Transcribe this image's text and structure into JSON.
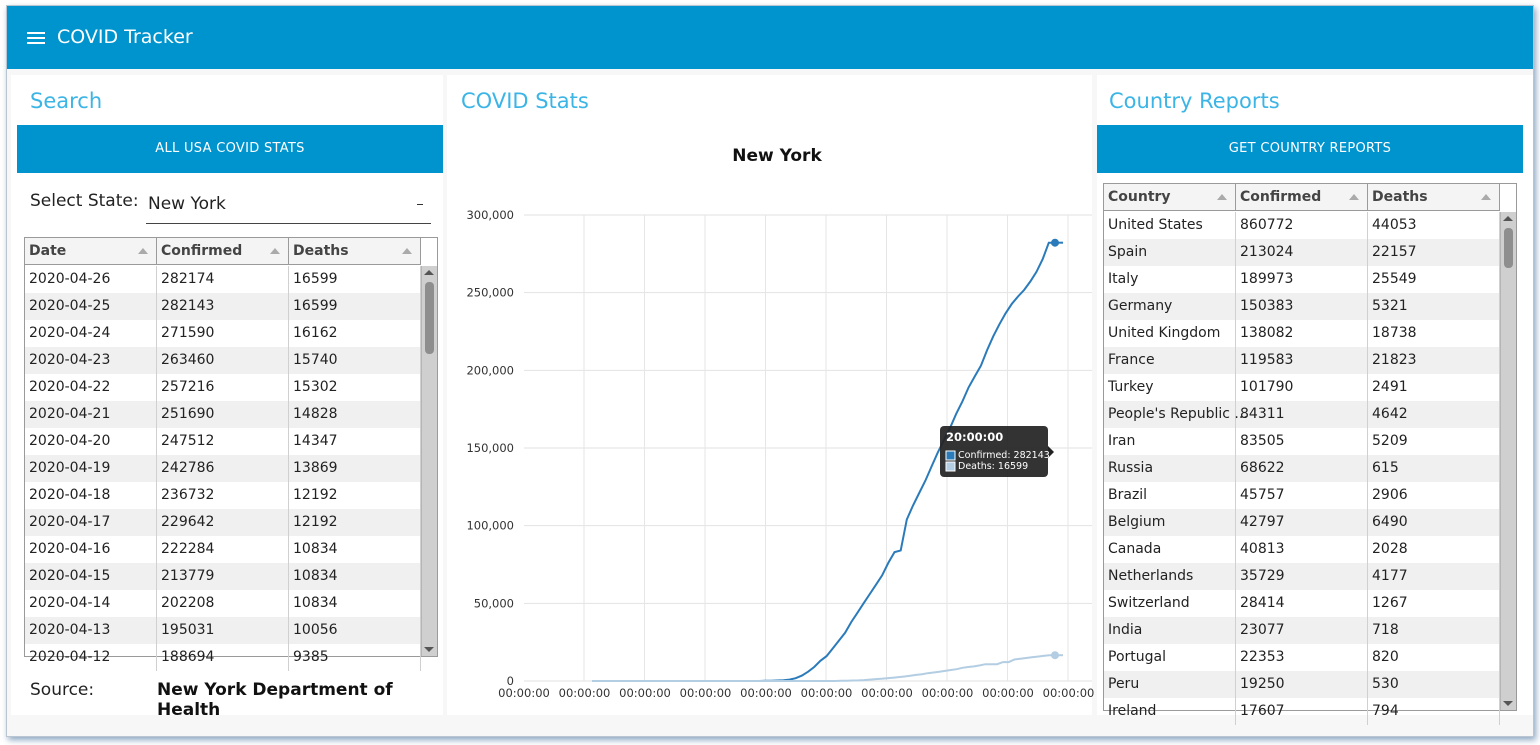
{
  "app": {
    "title": "COVID Tracker"
  },
  "search_panel": {
    "title": "Search",
    "all_usa_button": "ALL USA COVID STATS",
    "select_state_label": "Select State:",
    "selected_state": "New York",
    "table": {
      "columns": [
        "Date",
        "Confirmed",
        "Deaths"
      ],
      "rows": [
        [
          "2020-04-26",
          "282174",
          "16599"
        ],
        [
          "2020-04-25",
          "282143",
          "16599"
        ],
        [
          "2020-04-24",
          "271590",
          "16162"
        ],
        [
          "2020-04-23",
          "263460",
          "15740"
        ],
        [
          "2020-04-22",
          "257216",
          "15302"
        ],
        [
          "2020-04-21",
          "251690",
          "14828"
        ],
        [
          "2020-04-20",
          "247512",
          "14347"
        ],
        [
          "2020-04-19",
          "242786",
          "13869"
        ],
        [
          "2020-04-18",
          "236732",
          "12192"
        ],
        [
          "2020-04-17",
          "229642",
          "12192"
        ],
        [
          "2020-04-16",
          "222284",
          "10834"
        ],
        [
          "2020-04-15",
          "213779",
          "10834"
        ],
        [
          "2020-04-14",
          "202208",
          "10834"
        ],
        [
          "2020-04-13",
          "195031",
          "10056"
        ],
        [
          "2020-04-12",
          "188694",
          "9385"
        ]
      ]
    },
    "source_label": "Source:",
    "source_value": "New York Department of Health"
  },
  "stats_panel": {
    "title": "COVID Stats",
    "chart_data": {
      "type": "line",
      "title": "New York",
      "xlabel": "",
      "ylabel": "",
      "ylim": [
        0,
        300000
      ],
      "yticks": [
        "0",
        "50,000",
        "100,000",
        "150,000",
        "200,000",
        "250,000",
        "300,000"
      ],
      "xtick_labels": [
        "00:00:00",
        "00:00:00",
        "00:00:00",
        "00:00:00",
        "00:00:00",
        "00:00:00",
        "00:00:00",
        "00:00:00",
        "00:00:00",
        "00:00:00"
      ],
      "grid": true,
      "series": [
        {
          "name": "Confirmed",
          "color": "#2b7bba",
          "values": [
            0,
            0,
            0,
            0,
            0,
            0,
            0,
            0,
            0,
            0,
            0,
            0,
            0,
            0,
            0,
            0,
            0,
            0,
            0,
            0,
            0,
            0,
            0,
            0,
            0,
            0,
            0,
            0,
            100,
            200,
            300,
            500,
            900,
            1800,
            3500,
            6000,
            9000,
            13000,
            16000,
            21000,
            26000,
            31000,
            38000,
            44000,
            50000,
            56000,
            62000,
            68000,
            76000,
            83000,
            84000,
            104000,
            113000,
            121000,
            129000,
            138000,
            147000,
            155000,
            163000,
            172000,
            180000,
            189000,
            196000,
            203000,
            213000,
            222000,
            229642,
            236732,
            242786,
            247512,
            251690,
            257216,
            263460,
            271590,
            282143,
            282174
          ]
        },
        {
          "name": "Deaths",
          "color": "#b3cde3",
          "values": [
            0,
            0,
            0,
            0,
            0,
            0,
            0,
            0,
            0,
            0,
            0,
            0,
            0,
            0,
            0,
            0,
            0,
            0,
            0,
            0,
            0,
            0,
            0,
            0,
            0,
            0,
            0,
            0,
            0,
            0,
            0,
            0,
            0,
            0,
            0,
            0,
            0,
            0,
            0,
            0,
            0,
            0,
            0,
            100,
            200,
            300,
            400,
            600,
            900,
            1200,
            1500,
            1800,
            2100,
            2500,
            2900,
            3400,
            3900,
            4400,
            5000,
            5500,
            6000,
            6500,
            7100,
            7600,
            8500,
            9000,
            9385,
            10056,
            10834,
            10834,
            10834,
            12192,
            12192,
            13869,
            14347,
            14828,
            15302,
            15740,
            16162,
            16599,
            16599
          ]
        }
      ],
      "tooltip": {
        "title": "20:00:00",
        "lines": [
          "Confirmed: 282143",
          "Deaths: 16599"
        ]
      }
    }
  },
  "country_panel": {
    "title": "Country Reports",
    "get_reports_button": "GET COUNTRY REPORTS",
    "table": {
      "columns": [
        "Country",
        "Confirmed",
        "Deaths"
      ],
      "rows": [
        [
          "United States",
          "860772",
          "44053"
        ],
        [
          "Spain",
          "213024",
          "22157"
        ],
        [
          "Italy",
          "189973",
          "25549"
        ],
        [
          "Germany",
          "150383",
          "5321"
        ],
        [
          "United Kingdom",
          "138082",
          "18738"
        ],
        [
          "France",
          "119583",
          "21823"
        ],
        [
          "Turkey",
          "101790",
          "2491"
        ],
        [
          "People's Republic ...",
          "84311",
          "4642"
        ],
        [
          "Iran",
          "83505",
          "5209"
        ],
        [
          "Russia",
          "68622",
          "615"
        ],
        [
          "Brazil",
          "45757",
          "2906"
        ],
        [
          "Belgium",
          "42797",
          "6490"
        ],
        [
          "Canada",
          "40813",
          "2028"
        ],
        [
          "Netherlands",
          "35729",
          "4177"
        ],
        [
          "Switzerland",
          "28414",
          "1267"
        ],
        [
          "India",
          "23077",
          "718"
        ],
        [
          "Portugal",
          "22353",
          "820"
        ],
        [
          "Peru",
          "19250",
          "530"
        ],
        [
          "Ireland",
          "17607",
          "794"
        ]
      ]
    }
  }
}
